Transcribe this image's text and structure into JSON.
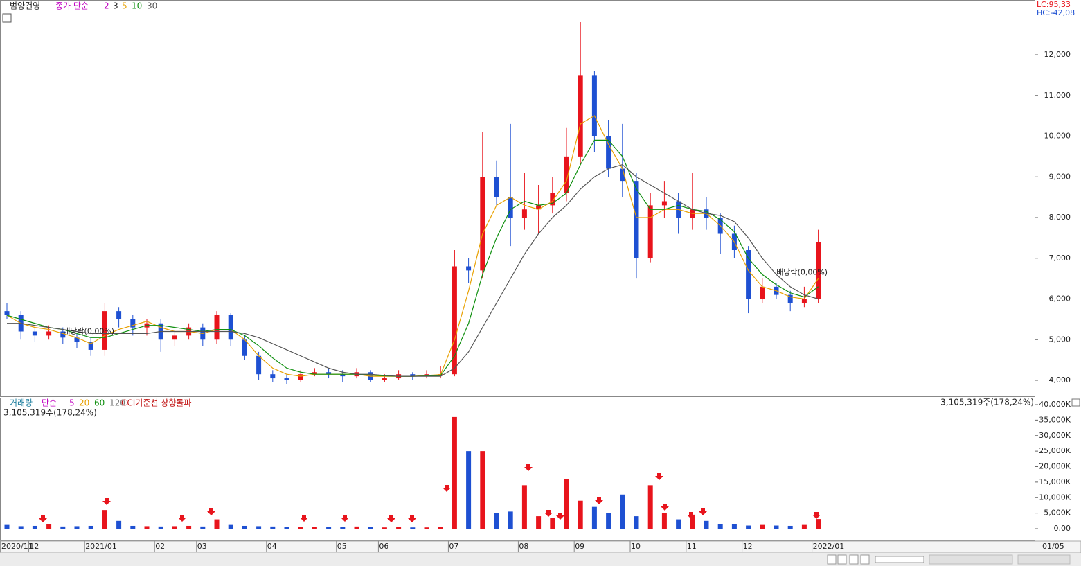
{
  "chart_data": [
    {
      "type": "candlestick",
      "title": "범양건영",
      "ma_label": "종가 단순",
      "other_ma_labels": [
        {
          "name": "2",
          "color": "#c000c0"
        },
        {
          "name": "3",
          "color": "#222222"
        }
      ],
      "lc_label": "LC:95,33",
      "hc_label": "HC:-42,08",
      "up_color": "#e8141c",
      "down_color": "#1e50d2",
      "annotations": [
        "배당락(0,00%)",
        "배당락(0,00%)"
      ],
      "last_date_label": "01/05",
      "categories": [
        "2020/11",
        null,
        "12",
        null,
        null,
        null,
        "2021/01",
        null,
        null,
        null,
        null,
        "02",
        null,
        null,
        "03",
        null,
        null,
        null,
        null,
        "04",
        null,
        null,
        null,
        null,
        "05",
        null,
        null,
        "06",
        null,
        null,
        null,
        null,
        "07",
        null,
        null,
        null,
        null,
        "08",
        null,
        null,
        null,
        "09",
        null,
        null,
        null,
        "10",
        null,
        null,
        null,
        "11",
        null,
        null,
        null,
        "12",
        null,
        null,
        null,
        null,
        "2022/01"
      ],
      "open": [
        5700,
        5600,
        5200,
        5100,
        5200,
        5050,
        4950,
        4750,
        5700,
        5500,
        5300,
        5400,
        5000,
        5100,
        5300,
        5000,
        5600,
        5000,
        4600,
        4150,
        4050,
        4000,
        4150,
        4200,
        4150,
        4100,
        4200,
        4000,
        4050,
        4150,
        4100,
        4150,
        4150,
        6800,
        6700,
        9000,
        8500,
        8000,
        8200,
        8300,
        8600,
        9500,
        11500,
        10000,
        9200,
        8900,
        7000,
        8300,
        8400,
        8000,
        8200,
        8000,
        7600,
        7200,
        6000,
        6300,
        6100,
        5900,
        6000
      ],
      "high": [
        5900,
        5700,
        5300,
        5350,
        5300,
        5150,
        5050,
        5900,
        5800,
        5600,
        5500,
        5500,
        5200,
        5400,
        5400,
        5700,
        5650,
        5100,
        4700,
        4250,
        4150,
        4250,
        4300,
        4300,
        4250,
        4300,
        4250,
        4150,
        4250,
        4200,
        4250,
        4350,
        7200,
        7000,
        10100,
        9400,
        10300,
        9100,
        8800,
        9000,
        10200,
        12800,
        11600,
        10400,
        10300,
        9100,
        8600,
        8900,
        8600,
        9100,
        8500,
        8100,
        7800,
        7300,
        6500,
        6400,
        6200,
        6300,
        7700
      ],
      "low": [
        5500,
        5000,
        4950,
        5000,
        4900,
        4800,
        4600,
        4600,
        5300,
        5100,
        5100,
        4700,
        4850,
        5000,
        4850,
        4900,
        4850,
        4500,
        4000,
        3950,
        3900,
        3950,
        4100,
        4050,
        3950,
        4050,
        3950,
        3950,
        4000,
        4000,
        4050,
        4050,
        4100,
        6400,
        6500,
        8300,
        7300,
        7700,
        7600,
        8100,
        8400,
        9300,
        9600,
        9000,
        8500,
        6500,
        6900,
        8000,
        7600,
        7700,
        7700,
        7100,
        7000,
        5650,
        5900,
        6000,
        5700,
        5800,
        5900
      ],
      "close": [
        5600,
        5200,
        5100,
        5200,
        5050,
        4950,
        4750,
        5700,
        5500,
        5300,
        5400,
        5000,
        5100,
        5300,
        5000,
        5600,
        5000,
        4600,
        4150,
        4050,
        4000,
        4150,
        4200,
        4150,
        4100,
        4200,
        4000,
        4050,
        4150,
        4100,
        4150,
        4150,
        6800,
        6700,
        9000,
        8500,
        8000,
        8200,
        8300,
        8600,
        9500,
        11500,
        10000,
        9200,
        8900,
        7000,
        8300,
        8400,
        8000,
        8200,
        8000,
        7600,
        7200,
        6000,
        6300,
        6100,
        5900,
        6000,
        7400
      ],
      "series": [
        {
          "name": "5",
          "color": "#e8a000",
          "values": [
            5600,
            5400,
            5300,
            5250,
            5150,
            5050,
            4900,
            5100,
            5250,
            5350,
            5450,
            5300,
            5200,
            5200,
            5150,
            5250,
            5250,
            5000,
            4600,
            4300,
            4150,
            4100,
            4150,
            4150,
            4150,
            4150,
            4100,
            4100,
            4100,
            4100,
            4120,
            4140,
            5000,
            6200,
            7600,
            8300,
            8500,
            8300,
            8200,
            8400,
            8900,
            10300,
            10500,
            9800,
            9200,
            8000,
            8000,
            8200,
            8200,
            8100,
            8100,
            7800,
            7400,
            6700,
            6300,
            6200,
            6050,
            6000,
            6500
          ]
        },
        {
          "name": "10",
          "color": "#109010",
          "values": [
            5600,
            5500,
            5400,
            5300,
            5250,
            5150,
            5050,
            5050,
            5150,
            5250,
            5350,
            5350,
            5300,
            5250,
            5200,
            5250,
            5250,
            5100,
            4850,
            4550,
            4300,
            4200,
            4150,
            4150,
            4150,
            4150,
            4130,
            4110,
            4100,
            4100,
            4110,
            4120,
            4600,
            5400,
            6600,
            7500,
            8200,
            8400,
            8300,
            8350,
            8600,
            9300,
            9900,
            9900,
            9500,
            8700,
            8200,
            8200,
            8300,
            8200,
            8150,
            7950,
            7650,
            7000,
            6600,
            6350,
            6150,
            6050,
            6300
          ]
        },
        {
          "name": "30",
          "color": "#555555",
          "values": [
            5400,
            5400,
            5350,
            5300,
            5250,
            5200,
            5150,
            5150,
            5150,
            5150,
            5150,
            5200,
            5200,
            5200,
            5200,
            5200,
            5200,
            5150,
            5050,
            4900,
            4750,
            4600,
            4450,
            4300,
            4200,
            4150,
            4150,
            4120,
            4100,
            4100,
            4100,
            4100,
            4300,
            4700,
            5300,
            5900,
            6500,
            7100,
            7600,
            8000,
            8300,
            8700,
            9000,
            9200,
            9300,
            9000,
            8800,
            8600,
            8400,
            8200,
            8100,
            8050,
            7900,
            7500,
            7000,
            6600,
            6300,
            6100,
            6000
          ]
        }
      ],
      "ylim": [
        4000,
        12000
      ],
      "yticks": [
        {
          "value": 4000,
          "label": "4,000"
        },
        {
          "value": 5000,
          "label": "5,000"
        },
        {
          "value": 6000,
          "label": "6,000"
        },
        {
          "value": 7000,
          "label": "7,000"
        },
        {
          "value": 8000,
          "label": "8,000"
        },
        {
          "value": 9000,
          "label": "9,000"
        },
        {
          "value": 10000,
          "label": "10,000"
        },
        {
          "value": 11000,
          "label": "11,000"
        },
        {
          "value": 12000,
          "label": "12,000"
        }
      ]
    },
    {
      "type": "bar",
      "title": "거래량",
      "ma_label": "단순",
      "ma_names": [
        {
          "name": "5",
          "color": "#c000c0"
        },
        {
          "name": "20",
          "color": "#e8a000"
        },
        {
          "name": "60",
          "color": "#109010"
        },
        {
          "name": "120",
          "color": "#777777"
        }
      ],
      "signal_label": "CCI기준선 상향돌파",
      "last_volume_label": "3,105,319주(178,24%)",
      "values": [
        1200,
        800,
        900,
        1500,
        700,
        800,
        900,
        6000,
        2500,
        900,
        800,
        700,
        800,
        900,
        700,
        3000,
        1200,
        900,
        800,
        700,
        600,
        500,
        600,
        500,
        500,
        700,
        500,
        400,
        500,
        400,
        400,
        500,
        36000,
        25000,
        25000,
        5000,
        5500,
        14000,
        4000,
        3500,
        16000,
        9000,
        7000,
        5000,
        11000,
        4000,
        14000,
        5000,
        3000,
        4500,
        2500,
        1500,
        1500,
        1000,
        1200,
        1000,
        900,
        1200,
        3105
      ],
      "ylim": [
        0,
        40000
      ],
      "yticks": [
        {
          "value": 0,
          "label": "0,00"
        },
        {
          "value": 5000,
          "label": "5,000K"
        },
        {
          "value": 10000,
          "label": "10,000K"
        },
        {
          "value": 15000,
          "label": "15,000K"
        },
        {
          "value": 20000,
          "label": "20,000K"
        },
        {
          "value": 25000,
          "label": "25,000K"
        },
        {
          "value": 30000,
          "label": "30,000K"
        },
        {
          "value": 35000,
          "label": "35,000K"
        },
        {
          "value": 40000,
          "label": "40,000K"
        }
      ]
    }
  ]
}
